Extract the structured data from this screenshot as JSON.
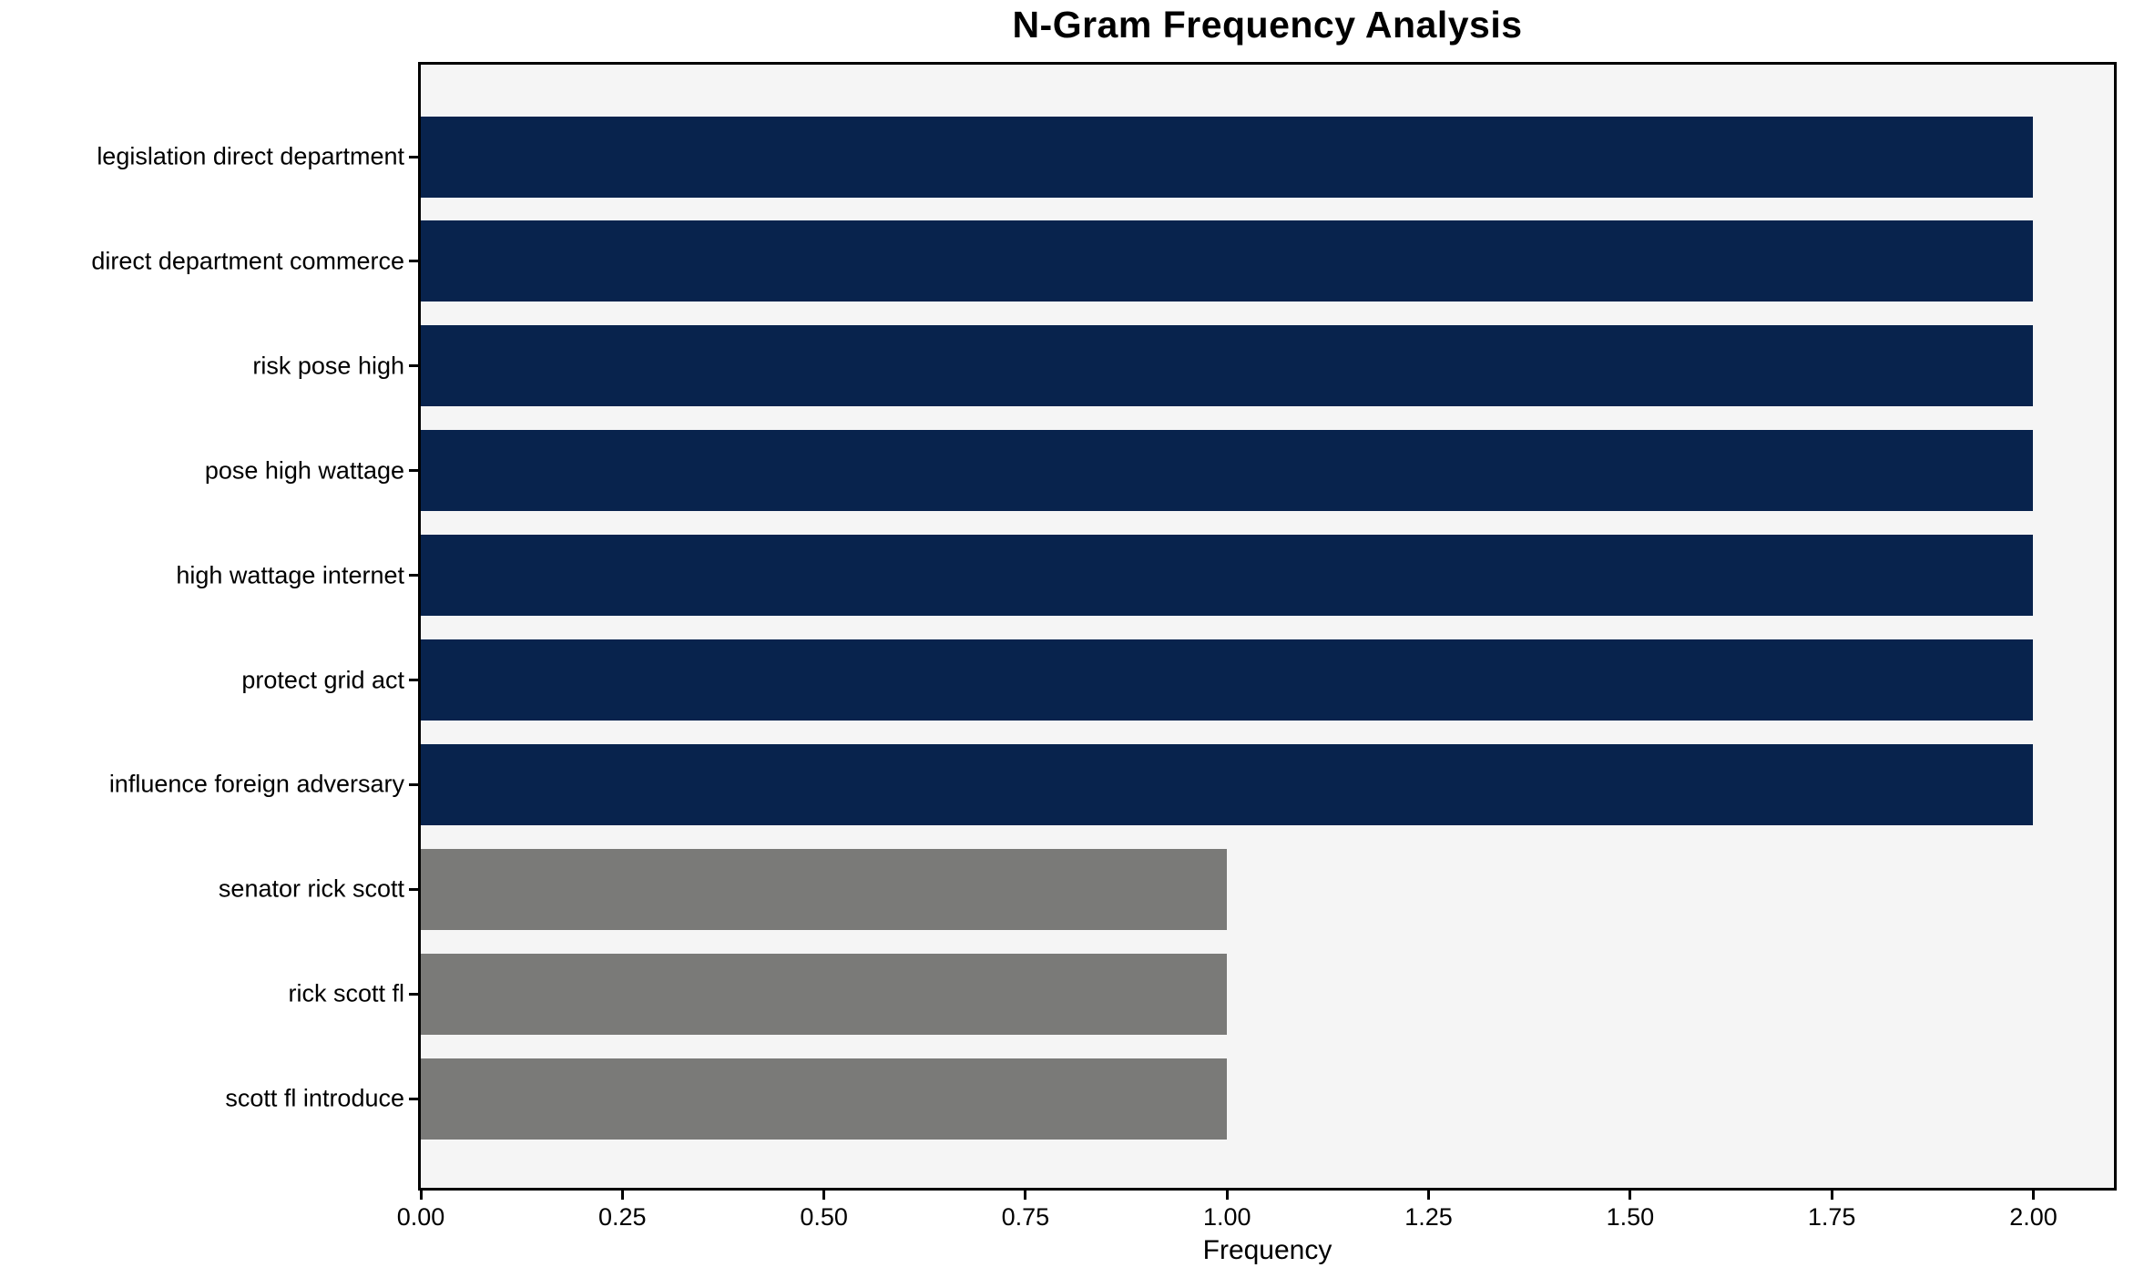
{
  "chart_data": {
    "type": "bar",
    "orientation": "horizontal",
    "title": "N-Gram Frequency Analysis",
    "xlabel": "Frequency",
    "ylabel": "",
    "categories": [
      "legislation direct department",
      "direct department commerce",
      "risk pose high",
      "pose high wattage",
      "high wattage internet",
      "protect grid act",
      "influence foreign adversary",
      "senator rick scott",
      "rick scott fl",
      "scott fl introduce"
    ],
    "values": [
      2,
      2,
      2,
      2,
      2,
      2,
      2,
      1,
      1,
      1
    ],
    "bar_colors": [
      "#08234d",
      "#08234d",
      "#08234d",
      "#08234d",
      "#08234d",
      "#08234d",
      "#08234d",
      "#7a7a78",
      "#7a7a78",
      "#7a7a78"
    ],
    "xlim": [
      0,
      2.1
    ],
    "x_ticks": [
      "0.00",
      "0.25",
      "0.50",
      "0.75",
      "1.00",
      "1.25",
      "1.50",
      "1.75",
      "2.00"
    ],
    "x_tick_values": [
      0,
      0.25,
      0.5,
      0.75,
      1.0,
      1.25,
      1.5,
      1.75,
      2.0
    ],
    "grid": false,
    "legend_position": "none",
    "colors": {
      "bar_high": "#08234d",
      "bar_low": "#7a7a78",
      "plot_background": "#f5f5f5",
      "spine": "#000000",
      "text": "#000000"
    }
  }
}
